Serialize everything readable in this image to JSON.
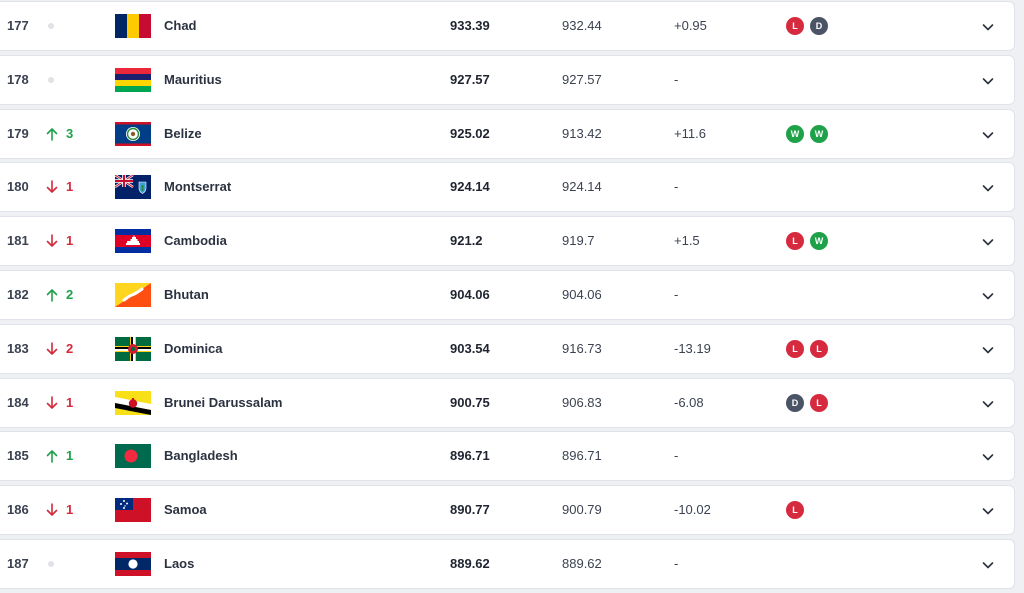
{
  "colors": {
    "up": "#1fa14a",
    "down": "#d42a3c",
    "win": "#1fa14a",
    "loss": "#d62b3f",
    "draw": "#4b5366"
  },
  "rows": [
    {
      "rank": "177",
      "move": "none",
      "moveText": "",
      "flag": "chad-flag-icon",
      "country": "Chad",
      "total": "933.39",
      "previous": "932.44",
      "diff": "+0.95",
      "results": [
        "L",
        "D"
      ]
    },
    {
      "rank": "178",
      "move": "none",
      "moveText": "",
      "flag": "mauritius-flag-icon",
      "country": "Mauritius",
      "total": "927.57",
      "previous": "927.57",
      "diff": "-",
      "results": []
    },
    {
      "rank": "179",
      "move": "up",
      "moveText": "3",
      "flag": "belize-flag-icon",
      "country": "Belize",
      "total": "925.02",
      "previous": "913.42",
      "diff": "+11.6",
      "results": [
        "W",
        "W"
      ]
    },
    {
      "rank": "180",
      "move": "down",
      "moveText": "1",
      "flag": "montserrat-flag-icon",
      "country": "Montserrat",
      "total": "924.14",
      "previous": "924.14",
      "diff": "-",
      "results": []
    },
    {
      "rank": "181",
      "move": "down",
      "moveText": "1",
      "flag": "cambodia-flag-icon",
      "country": "Cambodia",
      "total": "921.2",
      "previous": "919.7",
      "diff": "+1.5",
      "results": [
        "L",
        "W"
      ]
    },
    {
      "rank": "182",
      "move": "up",
      "moveText": "2",
      "flag": "bhutan-flag-icon",
      "country": "Bhutan",
      "total": "904.06",
      "previous": "904.06",
      "diff": "-",
      "results": []
    },
    {
      "rank": "183",
      "move": "down",
      "moveText": "2",
      "flag": "dominica-flag-icon",
      "country": "Dominica",
      "total": "903.54",
      "previous": "916.73",
      "diff": "-13.19",
      "results": [
        "L",
        "L"
      ]
    },
    {
      "rank": "184",
      "move": "down",
      "moveText": "1",
      "flag": "brunei-flag-icon",
      "country": "Brunei Darussalam",
      "total": "900.75",
      "previous": "906.83",
      "diff": "-6.08",
      "results": [
        "D",
        "L"
      ]
    },
    {
      "rank": "185",
      "move": "up",
      "moveText": "1",
      "flag": "bangladesh-flag-icon",
      "country": "Bangladesh",
      "total": "896.71",
      "previous": "896.71",
      "diff": "-",
      "results": []
    },
    {
      "rank": "186",
      "move": "down",
      "moveText": "1",
      "flag": "samoa-flag-icon",
      "country": "Samoa",
      "total": "890.77",
      "previous": "900.79",
      "diff": "-10.02",
      "results": [
        "L"
      ]
    },
    {
      "rank": "187",
      "move": "none",
      "moveText": "",
      "flag": "laos-flag-icon",
      "country": "Laos",
      "total": "889.62",
      "previous": "889.62",
      "diff": "-",
      "results": []
    }
  ]
}
